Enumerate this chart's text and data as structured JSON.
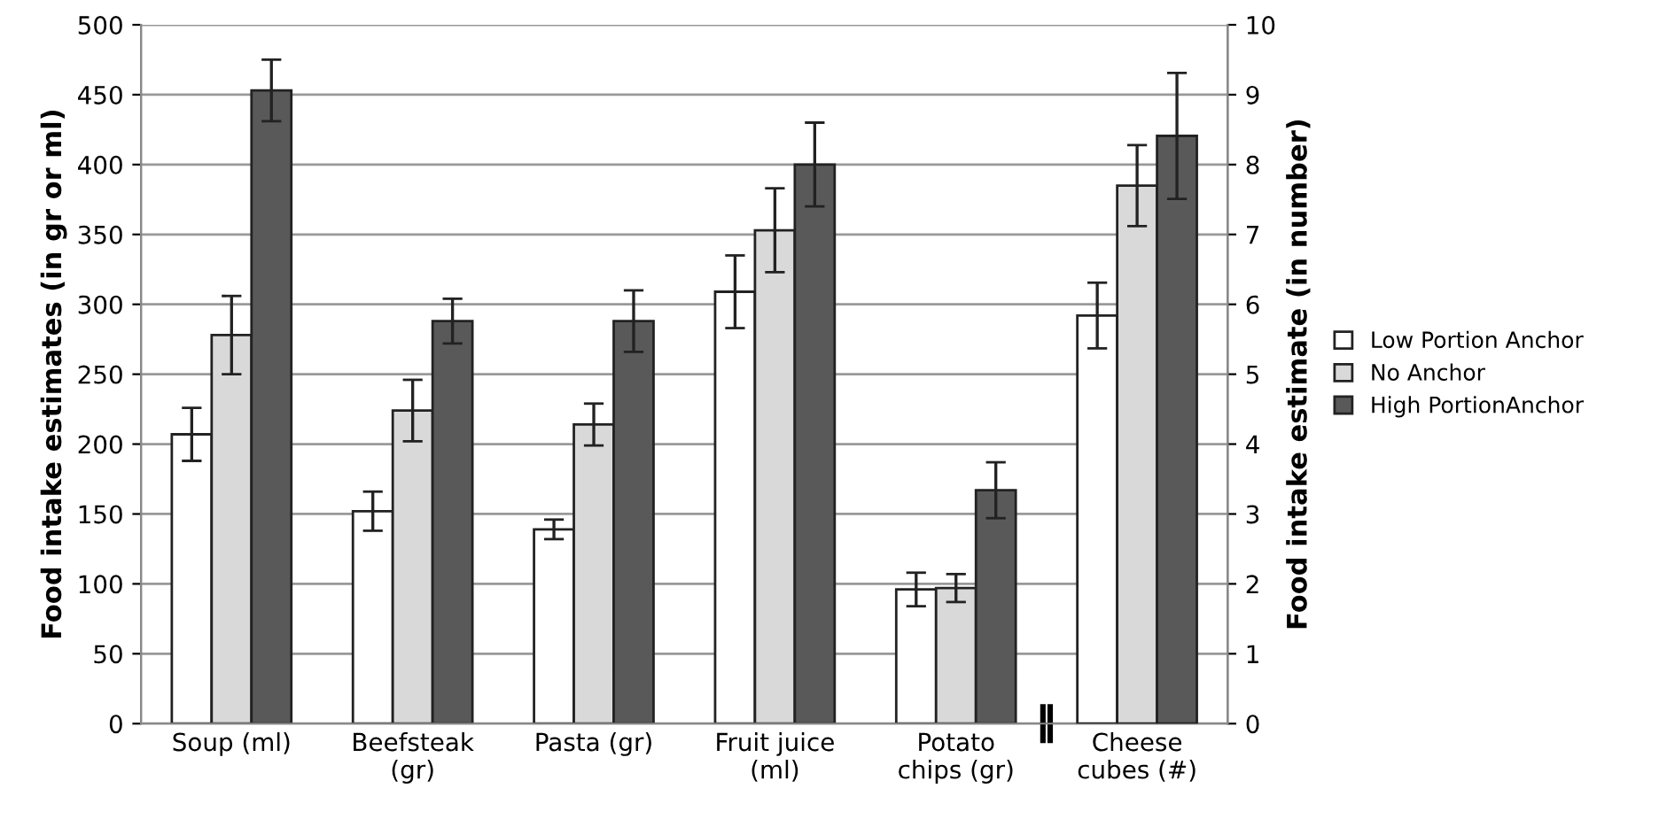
{
  "chart_data": {
    "type": "bar",
    "categories": [
      "Soup (ml)",
      "Beefsteak\n(gr)",
      "Pasta (gr)",
      "Fruit juice\n(ml)",
      "Potato\nchips (gr)",
      "Cheese\ncubes (#)"
    ],
    "ylabel": "Food intake estimates (in gr or ml)",
    "y2label": "Food intake estimate (in number)",
    "ylim": [
      0,
      500
    ],
    "yticks": [
      0,
      50,
      100,
      150,
      200,
      250,
      300,
      350,
      400,
      450,
      500
    ],
    "y2lim": [
      0,
      10
    ],
    "y2ticks": [
      0,
      1,
      2,
      3,
      4,
      5,
      6,
      7,
      8,
      9,
      10
    ],
    "grid": "y",
    "legend": "right",
    "series": [
      {
        "name": "Low Portion Anchor",
        "color": "#ffffff",
        "values": [
          207,
          152,
          139,
          309,
          96,
          null
        ],
        "errors": [
          19,
          14,
          7,
          26,
          12,
          null
        ]
      },
      {
        "name": "No Anchor",
        "color": "#d9d9d9",
        "values": [
          278,
          224,
          214,
          353,
          97,
          null
        ],
        "errors": [
          28,
          22,
          15,
          30,
          10,
          null
        ]
      },
      {
        "name": "High PortionAnchor",
        "color": "#595959",
        "values": [
          453,
          288,
          288,
          400,
          167,
          null
        ],
        "errors": [
          22,
          16,
          22,
          30,
          20,
          null
        ]
      },
      {
        "color": "#ffffff",
        "axis": "y2",
        "values": [
          null,
          null,
          null,
          null,
          null,
          5.84
        ],
        "errors": [
          null,
          null,
          null,
          null,
          null,
          0.47
        ]
      },
      {
        "color": "#d9d9d9",
        "axis": "y2",
        "values": [
          null,
          null,
          null,
          null,
          null,
          7.7
        ],
        "errors": [
          null,
          null,
          null,
          null,
          null,
          0.58
        ]
      },
      {
        "color": "#595959",
        "axis": "y2",
        "values": [
          null,
          null,
          null,
          null,
          null,
          8.41
        ],
        "errors": [
          null,
          null,
          null,
          null,
          null,
          0.9
        ]
      }
    ]
  }
}
